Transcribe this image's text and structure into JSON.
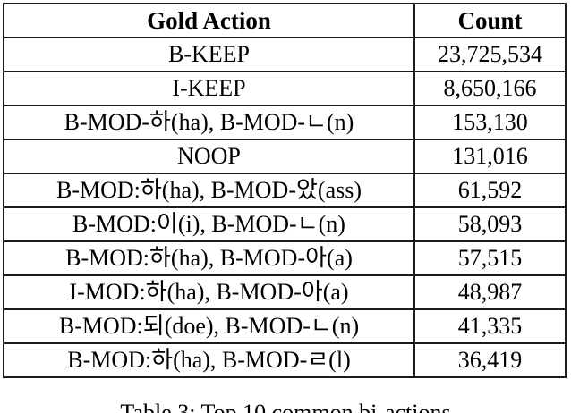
{
  "table": {
    "columns": [
      "Gold Action",
      "Count"
    ],
    "rows": [
      {
        "action": "B-KEEP",
        "count": "23,725,534"
      },
      {
        "action": "I-KEEP",
        "count": "8,650,166"
      },
      {
        "action": "B-MOD-하(ha), B-MOD-ㄴ(n)",
        "count": "153,130"
      },
      {
        "action": "NOOP",
        "count": "131,016"
      },
      {
        "action": "B-MOD:하(ha), B-MOD-았(ass)",
        "count": "61,592"
      },
      {
        "action": "B-MOD:이(i), B-MOD-ㄴ(n)",
        "count": "58,093"
      },
      {
        "action": "B-MOD:하(ha), B-MOD-아(a)",
        "count": "57,515"
      },
      {
        "action": "I-MOD:하(ha), B-MOD-아(a)",
        "count": "48,987"
      },
      {
        "action": "B-MOD:되(doe), B-MOD-ㄴ(n)",
        "count": "41,335"
      },
      {
        "action": "B-MOD:하(ha), B-MOD-ㄹ(l)",
        "count": "36,419"
      }
    ]
  },
  "caption": "Table 3: Top 10 common bi-actions"
}
